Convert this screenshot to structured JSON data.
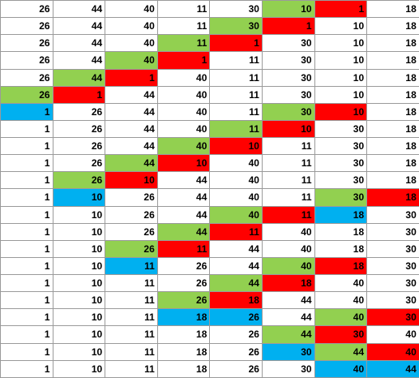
{
  "colors": {
    "green": "#92d050",
    "red": "#ff0000",
    "blue": "#00b0f0",
    "white": "#ffffff"
  },
  "rows": [
    [
      [
        "26",
        ""
      ],
      [
        "44",
        ""
      ],
      [
        "40",
        ""
      ],
      [
        "11",
        ""
      ],
      [
        "30",
        ""
      ],
      [
        "10",
        "green"
      ],
      [
        "1",
        "red"
      ],
      [
        "18",
        ""
      ]
    ],
    [
      [
        "26",
        ""
      ],
      [
        "44",
        ""
      ],
      [
        "40",
        ""
      ],
      [
        "11",
        ""
      ],
      [
        "30",
        "green"
      ],
      [
        "1",
        "red"
      ],
      [
        "10",
        ""
      ],
      [
        "18",
        ""
      ]
    ],
    [
      [
        "26",
        ""
      ],
      [
        "44",
        ""
      ],
      [
        "40",
        ""
      ],
      [
        "11",
        "green"
      ],
      [
        "1",
        "red"
      ],
      [
        "30",
        ""
      ],
      [
        "10",
        ""
      ],
      [
        "18",
        ""
      ]
    ],
    [
      [
        "26",
        ""
      ],
      [
        "44",
        ""
      ],
      [
        "40",
        "green"
      ],
      [
        "1",
        "red"
      ],
      [
        "11",
        ""
      ],
      [
        "30",
        ""
      ],
      [
        "10",
        ""
      ],
      [
        "18",
        ""
      ]
    ],
    [
      [
        "26",
        ""
      ],
      [
        "44",
        "green"
      ],
      [
        "1",
        "red"
      ],
      [
        "40",
        ""
      ],
      [
        "11",
        ""
      ],
      [
        "30",
        ""
      ],
      [
        "10",
        ""
      ],
      [
        "18",
        ""
      ]
    ],
    [
      [
        "26",
        "green"
      ],
      [
        "1",
        "red"
      ],
      [
        "44",
        ""
      ],
      [
        "40",
        ""
      ],
      [
        "11",
        ""
      ],
      [
        "30",
        ""
      ],
      [
        "10",
        ""
      ],
      [
        "18",
        ""
      ]
    ],
    [
      [
        "1",
        "blue"
      ],
      [
        "26",
        ""
      ],
      [
        "44",
        ""
      ],
      [
        "40",
        ""
      ],
      [
        "11",
        ""
      ],
      [
        "30",
        "green"
      ],
      [
        "10",
        "red"
      ],
      [
        "18",
        ""
      ]
    ],
    [
      [
        "1",
        ""
      ],
      [
        "26",
        ""
      ],
      [
        "44",
        ""
      ],
      [
        "40",
        ""
      ],
      [
        "11",
        "green"
      ],
      [
        "10",
        "red"
      ],
      [
        "30",
        ""
      ],
      [
        "18",
        ""
      ]
    ],
    [
      [
        "1",
        ""
      ],
      [
        "26",
        ""
      ],
      [
        "44",
        ""
      ],
      [
        "40",
        "green"
      ],
      [
        "10",
        "red"
      ],
      [
        "11",
        ""
      ],
      [
        "30",
        ""
      ],
      [
        "18",
        ""
      ]
    ],
    [
      [
        "1",
        ""
      ],
      [
        "26",
        ""
      ],
      [
        "44",
        "green"
      ],
      [
        "10",
        "red"
      ],
      [
        "40",
        ""
      ],
      [
        "11",
        ""
      ],
      [
        "30",
        ""
      ],
      [
        "18",
        ""
      ]
    ],
    [
      [
        "1",
        ""
      ],
      [
        "26",
        "green"
      ],
      [
        "10",
        "red"
      ],
      [
        "44",
        ""
      ],
      [
        "40",
        ""
      ],
      [
        "11",
        ""
      ],
      [
        "30",
        ""
      ],
      [
        "18",
        ""
      ]
    ],
    [
      [
        "1",
        ""
      ],
      [
        "10",
        "blue"
      ],
      [
        "26",
        ""
      ],
      [
        "44",
        ""
      ],
      [
        "40",
        ""
      ],
      [
        "11",
        ""
      ],
      [
        "30",
        "green"
      ],
      [
        "18",
        "red"
      ]
    ],
    [
      [
        "1",
        ""
      ],
      [
        "10",
        ""
      ],
      [
        "26",
        ""
      ],
      [
        "44",
        ""
      ],
      [
        "40",
        "green"
      ],
      [
        "11",
        "red"
      ],
      [
        "18",
        "blue"
      ],
      [
        "30",
        ""
      ]
    ],
    [
      [
        "1",
        ""
      ],
      [
        "10",
        ""
      ],
      [
        "26",
        ""
      ],
      [
        "44",
        "green"
      ],
      [
        "11",
        "red"
      ],
      [
        "40",
        ""
      ],
      [
        "18",
        ""
      ],
      [
        "30",
        ""
      ]
    ],
    [
      [
        "1",
        ""
      ],
      [
        "10",
        ""
      ],
      [
        "26",
        "green"
      ],
      [
        "11",
        "red"
      ],
      [
        "44",
        ""
      ],
      [
        "40",
        ""
      ],
      [
        "18",
        ""
      ],
      [
        "30",
        ""
      ]
    ],
    [
      [
        "1",
        ""
      ],
      [
        "10",
        ""
      ],
      [
        "11",
        "blue"
      ],
      [
        "26",
        ""
      ],
      [
        "44",
        ""
      ],
      [
        "40",
        "green"
      ],
      [
        "18",
        "red"
      ],
      [
        "30",
        ""
      ]
    ],
    [
      [
        "1",
        ""
      ],
      [
        "10",
        ""
      ],
      [
        "11",
        ""
      ],
      [
        "26",
        ""
      ],
      [
        "44",
        "green"
      ],
      [
        "18",
        "red"
      ],
      [
        "40",
        ""
      ],
      [
        "30",
        ""
      ]
    ],
    [
      [
        "1",
        ""
      ],
      [
        "10",
        ""
      ],
      [
        "11",
        ""
      ],
      [
        "26",
        "green"
      ],
      [
        "18",
        "red"
      ],
      [
        "44",
        ""
      ],
      [
        "40",
        ""
      ],
      [
        "30",
        ""
      ]
    ],
    [
      [
        "1",
        ""
      ],
      [
        "10",
        ""
      ],
      [
        "11",
        ""
      ],
      [
        "18",
        "blue"
      ],
      [
        "26",
        "blue"
      ],
      [
        "44",
        ""
      ],
      [
        "40",
        "green"
      ],
      [
        "30",
        "red"
      ]
    ],
    [
      [
        "1",
        ""
      ],
      [
        "10",
        ""
      ],
      [
        "11",
        ""
      ],
      [
        "18",
        ""
      ],
      [
        "26",
        ""
      ],
      [
        "44",
        "green"
      ],
      [
        "30",
        "red"
      ],
      [
        "40",
        ""
      ]
    ],
    [
      [
        "1",
        ""
      ],
      [
        "10",
        ""
      ],
      [
        "11",
        ""
      ],
      [
        "18",
        ""
      ],
      [
        "26",
        ""
      ],
      [
        "30",
        "blue"
      ],
      [
        "44",
        "green"
      ],
      [
        "40",
        "red"
      ]
    ],
    [
      [
        "1",
        ""
      ],
      [
        "10",
        ""
      ],
      [
        "11",
        ""
      ],
      [
        "18",
        ""
      ],
      [
        "26",
        ""
      ],
      [
        "30",
        ""
      ],
      [
        "40",
        "blue"
      ],
      [
        "44",
        "blue"
      ]
    ]
  ]
}
